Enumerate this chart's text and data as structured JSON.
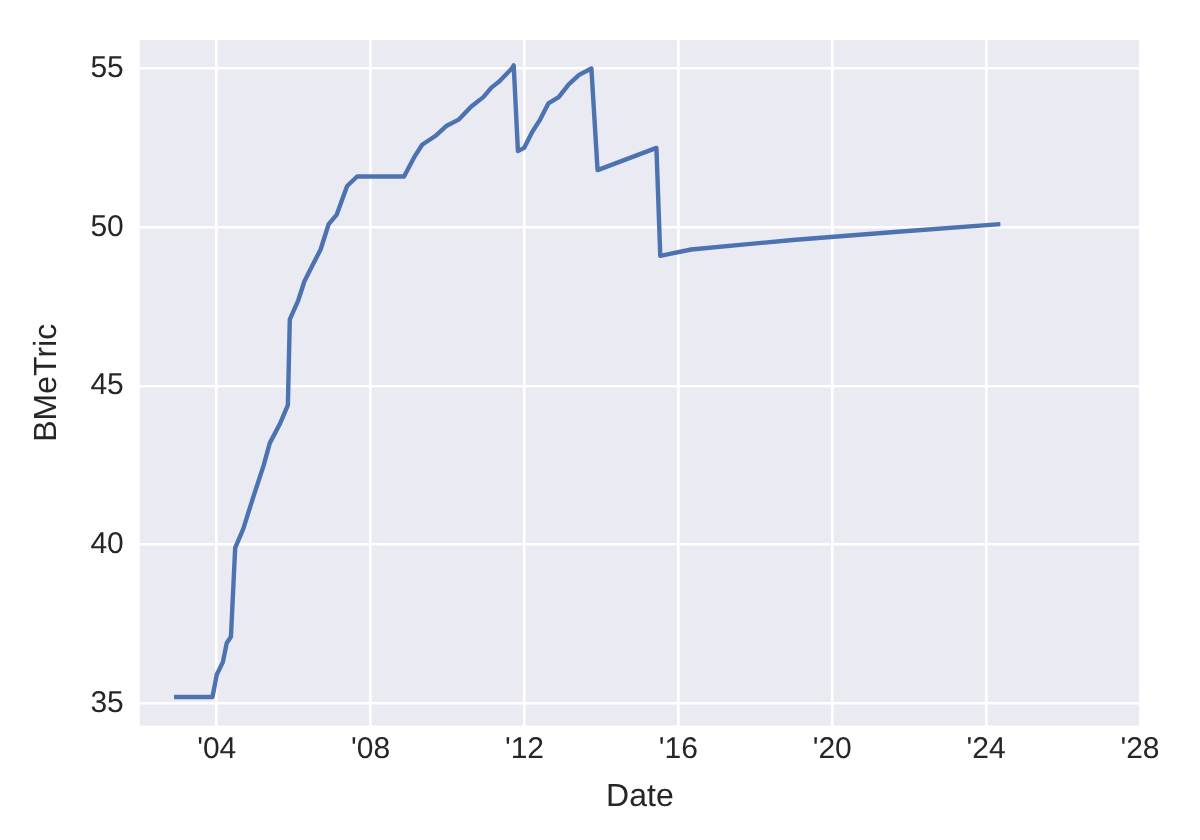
{
  "chart_data": {
    "type": "line",
    "xlabel": "Date",
    "ylabel": "BMeTric",
    "x": [
      2002.89,
      2003.89,
      2004.0,
      2004.16,
      2004.26,
      2004.37,
      2004.48,
      2004.69,
      2004.95,
      2005.22,
      2005.38,
      2005.64,
      2005.85,
      2005.9,
      2006.12,
      2006.28,
      2006.49,
      2006.7,
      2006.91,
      2007.12,
      2007.39,
      2007.65,
      2008.87,
      2009.13,
      2009.34,
      2009.71,
      2009.98,
      2010.3,
      2010.61,
      2010.93,
      2011.14,
      2011.35,
      2011.67,
      2011.72,
      2011.83,
      2011.99,
      2012.2,
      2012.41,
      2012.62,
      2012.89,
      2013.15,
      2013.42,
      2013.74,
      2013.9,
      2015.43,
      2015.53,
      2016.33,
      2018.97,
      2021.62,
      2024.37
    ],
    "series": [
      {
        "color": "#4c72b0",
        "values": [
          35.2,
          35.2,
          35.9,
          36.3,
          36.9,
          37.1,
          39.9,
          40.5,
          41.5,
          42.5,
          43.2,
          43.8,
          44.4,
          47.1,
          47.7,
          48.3,
          48.8,
          49.3,
          50.1,
          50.4,
          51.3,
          51.6,
          51.6,
          52.2,
          52.6,
          52.9,
          53.2,
          53.4,
          53.8,
          54.1,
          54.4,
          54.6,
          55.0,
          55.1,
          52.4,
          52.5,
          53.0,
          53.4,
          53.9,
          54.1,
          54.5,
          54.8,
          55.0,
          51.8,
          52.5,
          49.1,
          49.3,
          49.6,
          49.85,
          50.1
        ]
      }
    ],
    "xlim": [
      2002.0,
      2028.0
    ],
    "xticks": [
      {
        "value": 2004,
        "label": "'04"
      },
      {
        "value": 2008,
        "label": "'08"
      },
      {
        "value": 2012,
        "label": "'12"
      },
      {
        "value": 2016,
        "label": "'16"
      },
      {
        "value": 2020,
        "label": "'20"
      },
      {
        "value": 2024,
        "label": "'24"
      },
      {
        "value": 2028,
        "label": "'28"
      }
    ],
    "ylim": [
      34.3,
      55.9
    ],
    "yticks": [
      35,
      40,
      45,
      50,
      55
    ],
    "grid": true,
    "legend": false,
    "marker": "none",
    "line_style": "solid"
  }
}
